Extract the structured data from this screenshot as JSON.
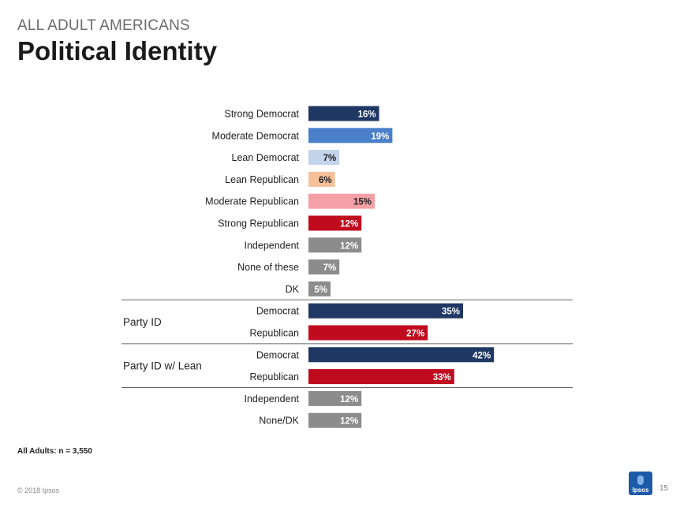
{
  "header": {
    "kicker": "ALL ADULT AMERICANS",
    "title": "Political Identity"
  },
  "colors": {
    "dark_blue": "#1f3864",
    "mid_blue": "#4a7fc9",
    "light_blue": "#c3d3ea",
    "peach": "#f5c09a",
    "pink": "#f4a0a6",
    "red": "#c00b1f",
    "gray": "#8c8c8c"
  },
  "chart_data": {
    "type": "bar",
    "orientation": "horizontal",
    "unit": "%",
    "groups": [
      {
        "label": "",
        "rows": [
          {
            "category": "Strong Democrat",
            "value": 16,
            "color": "#1f3864",
            "label": "16%"
          },
          {
            "category": "Moderate Democrat",
            "value": 19,
            "color": "#4a7fc9",
            "label": "19%"
          },
          {
            "category": "Lean Democrat",
            "value": 7,
            "color": "#c3d3ea",
            "label": "7%"
          },
          {
            "category": "Lean Republican",
            "value": 6,
            "color": "#f5c09a",
            "label": "6%"
          },
          {
            "category": "Moderate Republican",
            "value": 15,
            "color": "#f4a0a6",
            "label": "15%"
          },
          {
            "category": "Strong Republican",
            "value": 12,
            "color": "#c00b1f",
            "label": "12%"
          },
          {
            "category": "Independent",
            "value": 12,
            "color": "#8c8c8c",
            "label": "12%"
          },
          {
            "category": "None of these",
            "value": 7,
            "color": "#8c8c8c",
            "label": "7%"
          },
          {
            "category": "DK",
            "value": 5,
            "color": "#8c8c8c",
            "label": "5%"
          }
        ]
      },
      {
        "label": "Party ID",
        "rows": [
          {
            "category": "Democrat",
            "value": 35,
            "color": "#1f3864",
            "label": "35%"
          },
          {
            "category": "Republican",
            "value": 27,
            "color": "#c00b1f",
            "label": "27%"
          }
        ]
      },
      {
        "label": "Party ID w/ Lean",
        "rows": [
          {
            "category": "Democrat",
            "value": 42,
            "color": "#1f3864",
            "label": "42%"
          },
          {
            "category": "Republican",
            "value": 33,
            "color": "#c00b1f",
            "label": "33%"
          }
        ]
      },
      {
        "label": "",
        "rows": [
          {
            "category": "Independent",
            "value": 12,
            "color": "#8c8c8c",
            "label": "12%"
          },
          {
            "category": "None/DK",
            "value": 12,
            "color": "#8c8c8c",
            "label": "12%"
          }
        ]
      }
    ]
  },
  "footer": {
    "note": "All Adults: n = 3,550",
    "copyright": "© 2018 Ipsos",
    "page_number": "15",
    "logo_text": "Ipsos"
  }
}
